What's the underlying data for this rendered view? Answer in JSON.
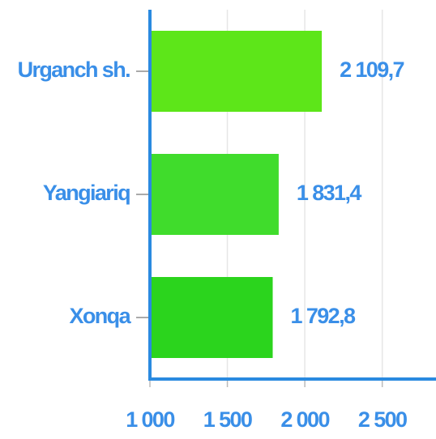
{
  "chart_data": {
    "type": "bar",
    "orientation": "horizontal",
    "categories": [
      "Urganch sh.",
      "Yangiariq",
      "Xonqa"
    ],
    "values": [
      2109.7,
      1831.4,
      1792.8
    ],
    "value_labels": [
      "2 109,7",
      "1 831,4",
      "1 792,8"
    ],
    "colors": [
      "#5de619",
      "#40dc2c",
      "#2bd41d"
    ],
    "xlim": [
      1000,
      2800
    ],
    "xticks": [
      {
        "value": 1000,
        "label": "1 000"
      },
      {
        "value": 1500,
        "label": "1 500"
      },
      {
        "value": 2000,
        "label": "2 000"
      },
      {
        "value": 2500,
        "label": "2 500"
      }
    ],
    "grid": true
  }
}
